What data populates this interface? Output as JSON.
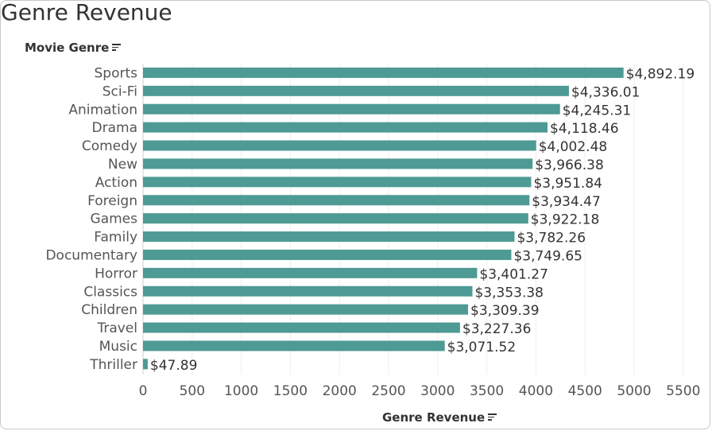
{
  "page": {
    "title": "Genre Revenue",
    "y_field_label": "Movie Genre",
    "x_field_label": "Genre Revenue",
    "bar_color": "#4e9a94",
    "sort_icon": "sort-descending-icon"
  },
  "chart_data": {
    "type": "bar",
    "orientation": "horizontal",
    "title": "Genre Revenue",
    "xlabel": "Genre Revenue",
    "ylabel": "Movie Genre",
    "categories": [
      "Sports",
      "Sci-Fi",
      "Animation",
      "Drama",
      "Comedy",
      "New",
      "Action",
      "Foreign",
      "Games",
      "Family",
      "Documentary",
      "Horror",
      "Classics",
      "Children",
      "Travel",
      "Music",
      "Thriller"
    ],
    "values": [
      4892.19,
      4336.01,
      4245.31,
      4118.46,
      4002.48,
      3966.38,
      3951.84,
      3934.47,
      3922.18,
      3782.26,
      3749.65,
      3401.27,
      3353.38,
      3309.39,
      3227.36,
      3071.52,
      47.89
    ],
    "value_labels": [
      "$4,892.19",
      "$4,336.01",
      "$4,245.31",
      "$4,118.46",
      "$4,002.48",
      "$3,966.38",
      "$3,951.84",
      "$3,934.47",
      "$3,922.18",
      "$3,782.26",
      "$3,749.65",
      "$3,401.27",
      "$3,353.38",
      "$3,309.39",
      "$3,227.36",
      "$3,071.52",
      "$47.89"
    ],
    "xticks": [
      0,
      500,
      1000,
      1500,
      2000,
      2500,
      3000,
      3500,
      4000,
      4500,
      5000,
      5500
    ],
    "xlim": [
      0,
      5650
    ],
    "grid": "vertical",
    "legend": "none"
  }
}
